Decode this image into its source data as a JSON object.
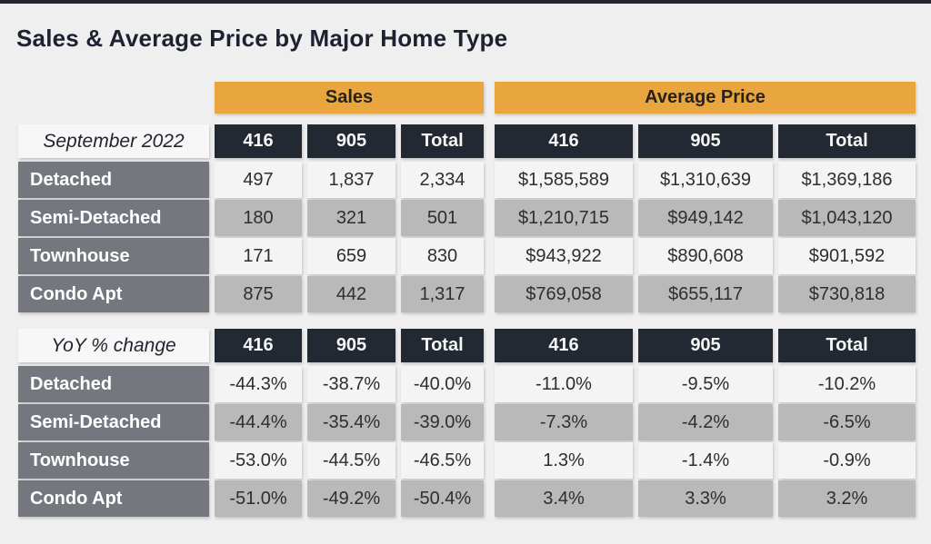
{
  "title": "Sales & Average Price by Major Home Type",
  "colors": {
    "accent_orange": "#e9a63e",
    "header_dark": "#232933",
    "label_gray": "#74787e",
    "row_light": "#f5f4f5",
    "row_gray": "#b9b9ba",
    "background": "#f0eff0"
  },
  "chart_data": {
    "type": "table",
    "title": "Sales & Average Price by Major Home Type",
    "group_headers": [
      "Sales",
      "Average Price"
    ],
    "column_headers": [
      "416",
      "905",
      "Total"
    ],
    "sections": [
      {
        "label": "September 2022",
        "rows": [
          {
            "name": "Detached",
            "sales": [
              "497",
              "1,837",
              "2,334"
            ],
            "avg_price": [
              "$1,585,589",
              "$1,310,639",
              "$1,369,186"
            ]
          },
          {
            "name": "Semi-Detached",
            "sales": [
              "180",
              "321",
              "501"
            ],
            "avg_price": [
              "$1,210,715",
              "$949,142",
              "$1,043,120"
            ]
          },
          {
            "name": "Townhouse",
            "sales": [
              "171",
              "659",
              "830"
            ],
            "avg_price": [
              "$943,922",
              "$890,608",
              "$901,592"
            ]
          },
          {
            "name": "Condo Apt",
            "sales": [
              "875",
              "442",
              "1,317"
            ],
            "avg_price": [
              "$769,058",
              "$655,117",
              "$730,818"
            ]
          }
        ]
      },
      {
        "label": "YoY % change",
        "rows": [
          {
            "name": "Detached",
            "sales": [
              "-44.3%",
              "-38.7%",
              "-40.0%"
            ],
            "avg_price": [
              "-11.0%",
              "-9.5%",
              "-10.2%"
            ]
          },
          {
            "name": "Semi-Detached",
            "sales": [
              "-44.4%",
              "-35.4%",
              "-39.0%"
            ],
            "avg_price": [
              "-7.3%",
              "-4.2%",
              "-6.5%"
            ]
          },
          {
            "name": "Townhouse",
            "sales": [
              "-53.0%",
              "-44.5%",
              "-46.5%"
            ],
            "avg_price": [
              "1.3%",
              "-1.4%",
              "-0.9%"
            ]
          },
          {
            "name": "Condo Apt",
            "sales": [
              "-51.0%",
              "-49.2%",
              "-50.4%"
            ],
            "avg_price": [
              "3.4%",
              "3.3%",
              "3.2%"
            ]
          }
        ]
      }
    ]
  }
}
